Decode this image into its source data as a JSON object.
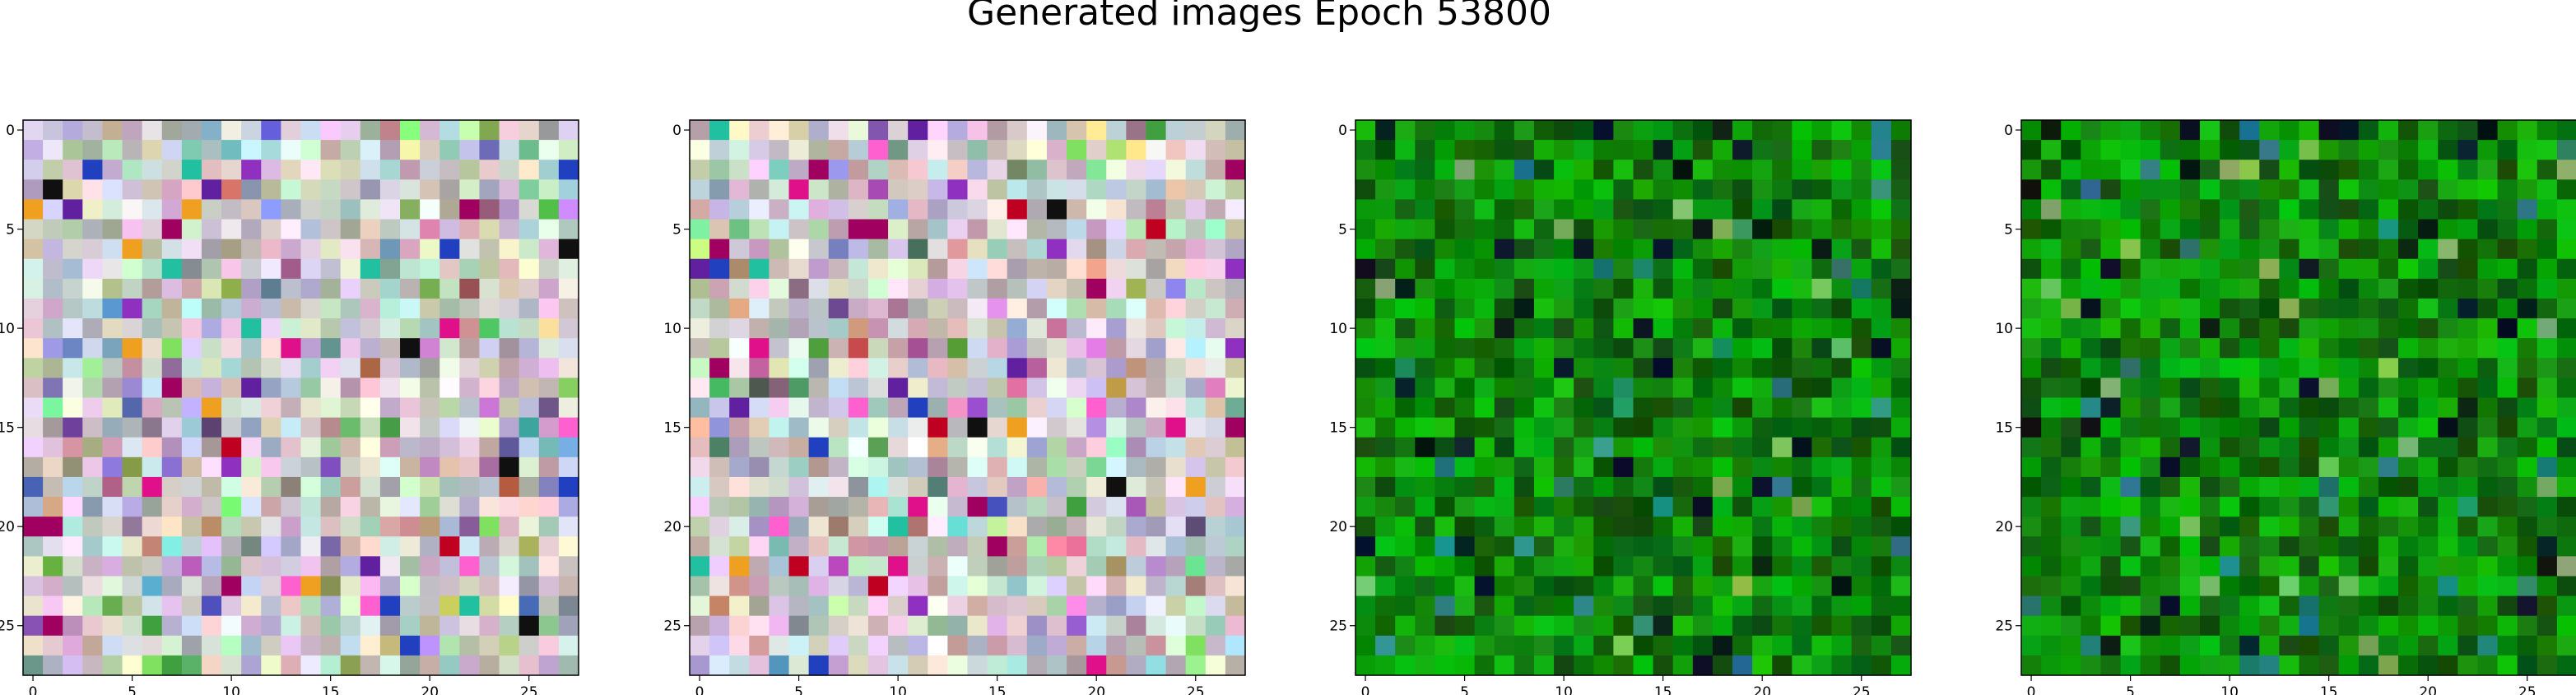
{
  "chart_data": {
    "type": "heatmap",
    "title": "Generated images Epoch 53800",
    "grid": false,
    "panels": [
      {
        "name": "",
        "palette": "pastel",
        "rows": 28,
        "cols": 28,
        "seed": 17,
        "xticks": [
          0,
          5,
          10,
          15,
          20,
          25
        ],
        "yticks": [
          0,
          5,
          10,
          15,
          20,
          25
        ],
        "xlim": [
          -0.5,
          27.5
        ],
        "ylim": [
          27.5,
          -0.5
        ]
      },
      {
        "name": "",
        "palette": "pastel",
        "rows": 28,
        "cols": 28,
        "seed": 42,
        "xticks": [
          0,
          5,
          10,
          15,
          20,
          25
        ],
        "yticks": [
          0,
          5,
          10,
          15,
          20,
          25
        ],
        "xlim": [
          -0.5,
          27.5
        ],
        "ylim": [
          27.5,
          -0.5
        ]
      },
      {
        "name": "",
        "palette": "green",
        "rows": 28,
        "cols": 28,
        "seed": 73,
        "xticks": [
          0,
          5,
          10,
          15,
          20,
          25
        ],
        "yticks": [
          0,
          5,
          10,
          15,
          20,
          25
        ],
        "xlim": [
          -0.5,
          27.5
        ],
        "ylim": [
          27.5,
          -0.5
        ]
      },
      {
        "name": "",
        "palette": "green",
        "rows": 28,
        "cols": 28,
        "seed": 91,
        "xticks": [
          0,
          5,
          10,
          15,
          20,
          25
        ],
        "yticks": [
          0,
          5,
          10,
          15,
          20,
          25
        ],
        "xlim": [
          -0.5,
          27.5
        ],
        "ylim": [
          27.5,
          -0.5
        ]
      }
    ]
  }
}
